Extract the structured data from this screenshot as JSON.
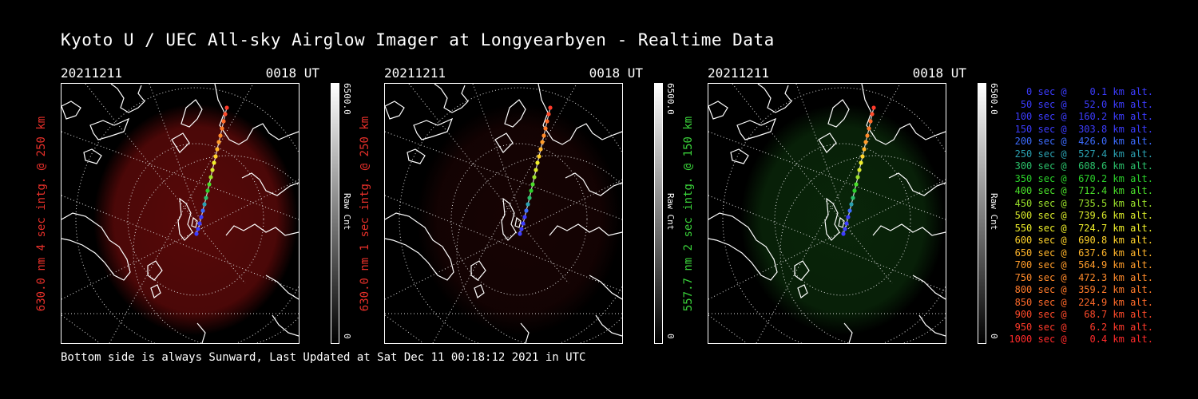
{
  "title": "Kyoto U / UEC All-sky Airglow Imager at Longyearbyen - Realtime Data",
  "footer": "Bottom side is always Sunward, Last Updated at Sat Dec 11 00:18:12 2021 in UTC",
  "panels": [
    {
      "date": "20211211",
      "time": "0018 UT",
      "ylabel": "630.0 nm 4 sec intg. @ 250 km",
      "label_color": "#e8302a",
      "glow": "#a01010",
      "glow_strength": 0.55,
      "cb_max": "6500.0",
      "cb_min": "0",
      "cb_label": "Raw Cnt"
    },
    {
      "date": "20211211",
      "time": "0018 UT",
      "ylabel": "630.0 nm 1 sec intg. @ 250 km",
      "label_color": "#e8302a",
      "glow": "#701010",
      "glow_strength": 0.2,
      "cb_max": "6500.0",
      "cb_min": "0",
      "cb_label": "Raw Cnt"
    },
    {
      "date": "20211211",
      "time": "0018 UT",
      "ylabel": "557.7 nm 2 sec intg. @ 150 km",
      "label_color": "#3ad23a",
      "glow": "#1a6a1a",
      "glow_strength": 0.35,
      "cb_max": "6500.0",
      "cb_min": "0",
      "cb_label": "Raw Cnt"
    }
  ],
  "chart_data": {
    "type": "scatter",
    "series": [
      {
        "x_sec": [
          0,
          50,
          100,
          150,
          200,
          250,
          300,
          350,
          400,
          450,
          500,
          550,
          600,
          650,
          700,
          750,
          800,
          850,
          900,
          950,
          1000
        ],
        "alt_km": [
          0.1,
          52.0,
          160.2,
          303.8,
          426.0,
          527.4,
          608.6,
          670.2,
          712.4,
          735.5,
          739.6,
          724.7,
          690.8,
          637.6,
          564.9,
          472.3,
          359.2,
          224.9,
          68.7,
          6.2,
          0.4
        ]
      }
    ]
  },
  "legend": [
    {
      "text": "   0 sec @    0.1 km alt.",
      "color": "#3c3cff"
    },
    {
      "text": "  50 sec @   52.0 km alt.",
      "color": "#3c3cff"
    },
    {
      "text": " 100 sec @  160.2 km alt.",
      "color": "#3c3cff"
    },
    {
      "text": " 150 sec @  303.8 km alt.",
      "color": "#3c3cff"
    },
    {
      "text": " 200 sec @  426.0 km alt.",
      "color": "#3c6cff"
    },
    {
      "text": " 250 sec @  527.4 km alt.",
      "color": "#2aa0b0"
    },
    {
      "text": " 300 sec @  608.6 km alt.",
      "color": "#2ac06a"
    },
    {
      "text": " 350 sec @  670.2 km alt.",
      "color": "#2ad02a"
    },
    {
      "text": " 400 sec @  712.4 km alt.",
      "color": "#4ade2a"
    },
    {
      "text": " 450 sec @  735.5 km alt.",
      "color": "#9ae02a"
    },
    {
      "text": " 500 sec @  739.6 km alt.",
      "color": "#d8e82a"
    },
    {
      "text": " 550 sec @  724.7 km alt.",
      "color": "#f0f02a"
    },
    {
      "text": " 600 sec @  690.8 km alt.",
      "color": "#ffd22a"
    },
    {
      "text": " 650 sec @  637.6 km alt.",
      "color": "#ffb42a"
    },
    {
      "text": " 700 sec @  564.9 km alt.",
      "color": "#ff9c2a"
    },
    {
      "text": " 750 sec @  472.3 km alt.",
      "color": "#ff8a2a"
    },
    {
      "text": " 800 sec @  359.2 km alt.",
      "color": "#ff7a2a"
    },
    {
      "text": " 850 sec @  224.9 km alt.",
      "color": "#ff6a2a"
    },
    {
      "text": " 900 sec @   68.7 km alt.",
      "color": "#ff4a2a"
    },
    {
      "text": " 950 sec @    6.2 km alt.",
      "color": "#ff3a2a"
    },
    {
      "text": "1000 sec @    0.4 km alt.",
      "color": "#ff2a2a"
    }
  ]
}
